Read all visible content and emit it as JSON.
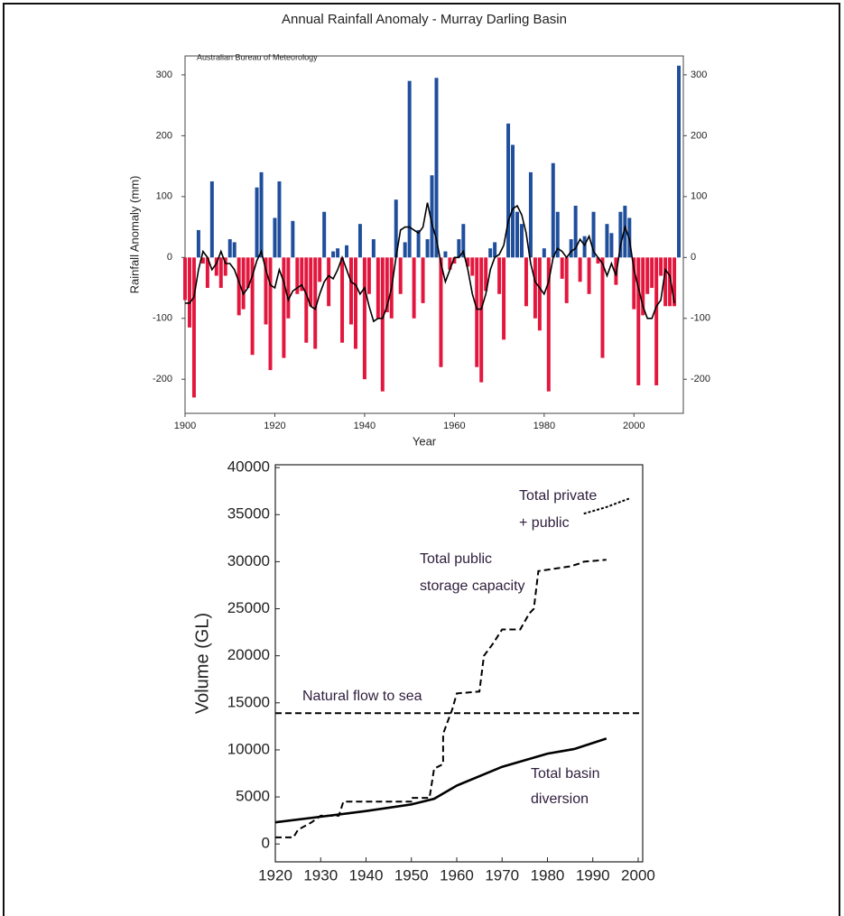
{
  "chart_data": [
    {
      "type": "bar",
      "title": "Annual Rainfall Anomaly - Murray Darling Basin",
      "annotation": "Australian Bureau of Meteorology",
      "y_label": "Rainfall Anomaly (mm)",
      "x_label": "Year",
      "x": [
        1900,
        1901,
        1902,
        1903,
        1904,
        1905,
        1906,
        1907,
        1908,
        1909,
        1910,
        1911,
        1912,
        1913,
        1914,
        1915,
        1916,
        1917,
        1918,
        1919,
        1920,
        1921,
        1922,
        1923,
        1924,
        1925,
        1926,
        1927,
        1928,
        1929,
        1930,
        1931,
        1932,
        1933,
        1934,
        1935,
        1936,
        1937,
        1938,
        1939,
        1940,
        1941,
        1942,
        1943,
        1944,
        1945,
        1946,
        1947,
        1948,
        1949,
        1950,
        1951,
        1952,
        1953,
        1954,
        1955,
        1956,
        1957,
        1958,
        1959,
        1960,
        1961,
        1962,
        1963,
        1964,
        1965,
        1966,
        1967,
        1968,
        1969,
        1970,
        1971,
        1972,
        1973,
        1974,
        1975,
        1976,
        1977,
        1978,
        1979,
        1980,
        1981,
        1982,
        1983,
        1984,
        1985,
        1986,
        1987,
        1988,
        1989,
        1990,
        1991,
        1992,
        1993,
        1994,
        1995,
        1996,
        1997,
        1998,
        1999,
        2000,
        2001,
        2002,
        2003,
        2004,
        2005,
        2006,
        2007,
        2008,
        2009,
        2010
      ],
      "values": [
        -70,
        -115,
        -230,
        45,
        -10,
        -50,
        125,
        -30,
        -50,
        -30,
        30,
        25,
        -95,
        -85,
        -50,
        -160,
        115,
        140,
        -110,
        -185,
        65,
        125,
        -165,
        -100,
        60,
        -60,
        -55,
        -140,
        -80,
        -150,
        -40,
        75,
        -80,
        10,
        15,
        -140,
        20,
        -110,
        -150,
        55,
        -200,
        -60,
        30,
        -100,
        -220,
        -90,
        -100,
        95,
        -60,
        25,
        290,
        -100,
        45,
        -75,
        30,
        135,
        295,
        -180,
        10,
        -20,
        -10,
        30,
        55,
        -15,
        -30,
        -180,
        -205,
        -55,
        15,
        25,
        -60,
        -135,
        220,
        185,
        75,
        55,
        -80,
        140,
        -100,
        -120,
        15,
        -220,
        155,
        75,
        -35,
        -75,
        30,
        85,
        -40,
        35,
        -60,
        75,
        -10,
        -165,
        55,
        40,
        -45,
        75,
        85,
        65,
        -85,
        -210,
        -95,
        -60,
        -50,
        -210,
        -30,
        -80,
        -80,
        -80,
        315
      ],
      "trend": [
        -75,
        -75,
        -65,
        -20,
        10,
        0,
        -20,
        -10,
        10,
        -10,
        -10,
        -20,
        -40,
        -60,
        -50,
        -30,
        -5,
        10,
        -20,
        -45,
        -50,
        -20,
        -40,
        -70,
        -55,
        -50,
        -45,
        -60,
        -80,
        -85,
        -60,
        -40,
        -30,
        -35,
        -20,
        0,
        -20,
        -40,
        -45,
        -60,
        -50,
        -80,
        -105,
        -100,
        -100,
        -80,
        -50,
        0,
        45,
        50,
        50,
        45,
        40,
        50,
        90,
        55,
        30,
        -10,
        -40,
        -20,
        0,
        0,
        10,
        -20,
        -60,
        -85,
        -85,
        -60,
        -20,
        0,
        5,
        20,
        60,
        80,
        85,
        70,
        40,
        -10,
        -40,
        -50,
        -60,
        -40,
        0,
        15,
        10,
        0,
        10,
        15,
        30,
        20,
        35,
        10,
        0,
        -10,
        -30,
        -10,
        -30,
        20,
        50,
        30,
        -20,
        -50,
        -80,
        -100,
        -100,
        -80,
        -70,
        -20,
        -30,
        -75,
        null
      ],
      "positive_color": "#1f4e9c",
      "negative_color": "#e3173e",
      "trend_color": "#000000",
      "xlim": [
        1900,
        2011
      ],
      "xticks": [
        1900,
        1920,
        1940,
        1960,
        1980,
        2000
      ],
      "ylim": [
        -256,
        331
      ],
      "yticks": [
        -200,
        -100,
        0,
        100,
        200,
        300
      ],
      "mirror_yticks": true
    },
    {
      "type": "line",
      "y_label": "Volume (GL)",
      "xlim": [
        1920,
        2001
      ],
      "xticks": [
        1920,
        1930,
        1940,
        1950,
        1960,
        1970,
        1980,
        1990,
        2000
      ],
      "ylim": [
        -1900,
        40300
      ],
      "yticks": [
        0,
        5000,
        10000,
        15000,
        20000,
        25000,
        30000,
        35000,
        40000
      ],
      "series": [
        {
          "name": "Natural flow to sea",
          "label_lines": [
            "Natural flow to sea"
          ],
          "style": "dashed",
          "color": "#000000",
          "x": [
            1920,
            2001
          ],
          "values": [
            13900,
            13900
          ]
        },
        {
          "name": "Total public storage capacity",
          "label_lines": [
            "Total public",
            "storage capacity"
          ],
          "style": "dashed",
          "color": "#000000",
          "x": [
            1920,
            1924,
            1925,
            1928,
            1930,
            1934,
            1935,
            1950,
            1950,
            1954,
            1955,
            1957,
            1957,
            1958,
            1959,
            1960,
            1965,
            1966,
            1968,
            1970,
            1974,
            1976,
            1977,
            1978,
            1985,
            1987,
            1988,
            1993
          ],
          "values": [
            700,
            700,
            1500,
            2300,
            3000,
            3000,
            4500,
            4500,
            4900,
            4900,
            8000,
            8500,
            11700,
            13000,
            14300,
            16000,
            16200,
            20000,
            21300,
            22800,
            22800,
            24500,
            25000,
            29000,
            29500,
            29800,
            30000,
            30200
          ]
        },
        {
          "name": "Total private + public",
          "label_lines": [
            "Total private",
            "+ public"
          ],
          "style": "dotted",
          "color": "#000000",
          "x": [
            1988,
            1993,
            1998
          ],
          "values": [
            35100,
            35800,
            36700
          ]
        },
        {
          "name": "Total basin diversion",
          "label_lines": [
            "Total basin",
            "diversion"
          ],
          "style": "solid",
          "color": "#000000",
          "x": [
            1920,
            1930,
            1940,
            1950,
            1955,
            1960,
            1970,
            1980,
            1986,
            1993
          ],
          "values": [
            2300,
            2900,
            3500,
            4200,
            4800,
            6200,
            8200,
            9600,
            10100,
            11200
          ]
        }
      ]
    }
  ]
}
